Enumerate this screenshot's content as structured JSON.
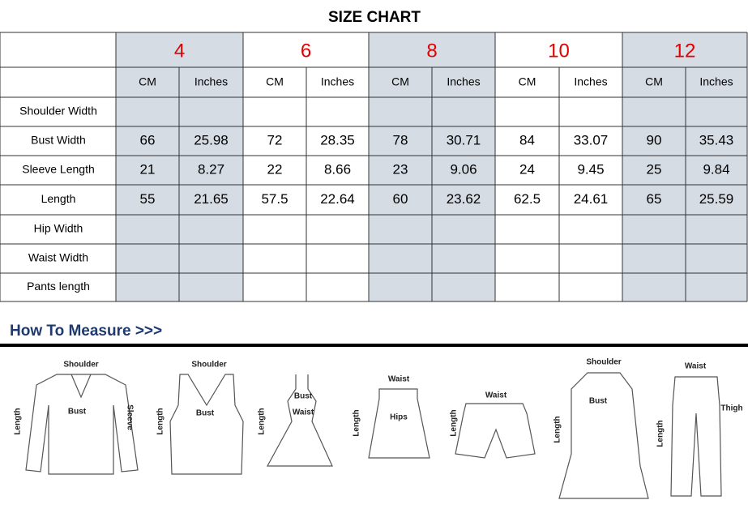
{
  "header": {
    "title": "SIZE CHART"
  },
  "table": {
    "sizes": [
      "4",
      "6",
      "8",
      "10",
      "12"
    ],
    "units": [
      "CM",
      "Inches"
    ],
    "rows": [
      {
        "label": "Shoulder Width",
        "values": [
          null,
          null,
          null,
          null,
          null,
          null,
          null,
          null,
          null,
          null
        ]
      },
      {
        "label": "Bust Width",
        "values": [
          66,
          25.98,
          72,
          28.35,
          78,
          30.71,
          84,
          33.07,
          90,
          35.43
        ]
      },
      {
        "label": "Sleeve Length",
        "values": [
          21,
          8.27,
          22,
          8.66,
          23,
          9.06,
          24,
          9.45,
          25,
          9.84
        ]
      },
      {
        "label": "Length",
        "values": [
          55,
          21.65,
          57.5,
          22.64,
          60,
          23.62,
          62.5,
          24.61,
          65,
          25.59
        ]
      },
      {
        "label": "Hip Width",
        "values": [
          null,
          null,
          null,
          null,
          null,
          null,
          null,
          null,
          null,
          null
        ]
      },
      {
        "label": "Waist Width",
        "values": [
          null,
          null,
          null,
          null,
          null,
          null,
          null,
          null,
          null,
          null
        ]
      },
      {
        "label": "Pants length",
        "values": [
          null,
          null,
          null,
          null,
          null,
          null,
          null,
          null,
          null,
          null
        ]
      }
    ]
  },
  "measure": {
    "title": "How To Measure >>>",
    "figures": [
      {
        "labels": [
          "Shoulder",
          "Bust",
          "Length",
          "Sleeve"
        ]
      },
      {
        "labels": [
          "Shoulder",
          "Bust",
          "Length"
        ]
      },
      {
        "labels": [
          "Bust",
          "Waist",
          "Length"
        ]
      },
      {
        "labels": [
          "Waist",
          "Hips",
          "Length"
        ]
      },
      {
        "labels": [
          "Waist",
          "Length"
        ]
      },
      {
        "labels": [
          "Shoulder",
          "Bust",
          "Length"
        ]
      },
      {
        "labels": [
          "Waist",
          "Thigh",
          "Length"
        ]
      }
    ]
  }
}
